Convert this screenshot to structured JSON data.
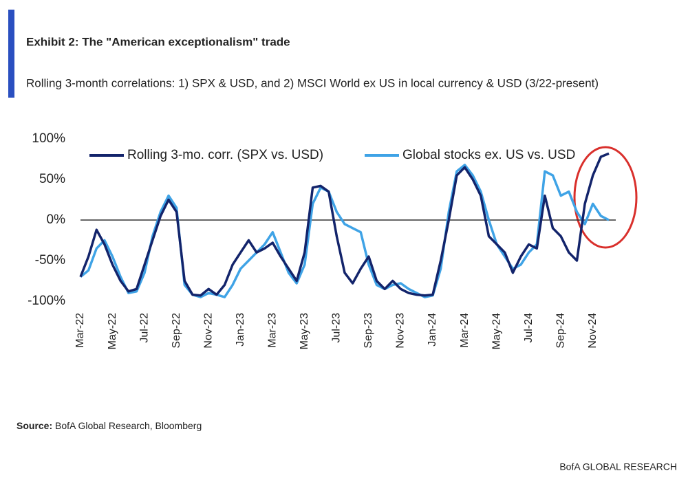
{
  "header": {
    "title": "Exhibit 2: The \"American exceptionalism\" trade",
    "subtitle": "Rolling 3-month correlations: 1) SPX & USD, and 2) MSCI World ex US in local currency & USD (3/22-present)"
  },
  "chart_data": {
    "type": "line",
    "categories": [
      "Mar-22",
      null,
      null,
      null,
      "May-22",
      null,
      null,
      null,
      "Jul-22",
      null,
      null,
      null,
      "Sep-22",
      null,
      null,
      null,
      "Nov-22",
      null,
      null,
      null,
      "Jan-23",
      null,
      null,
      null,
      "Mar-23",
      null,
      null,
      null,
      "May-23",
      null,
      null,
      null,
      "Jul-23",
      null,
      null,
      null,
      "Sep-23",
      null,
      null,
      null,
      "Nov-23",
      null,
      null,
      null,
      "Jan-24",
      null,
      null,
      null,
      "Mar-24",
      null,
      null,
      null,
      "May-24",
      null,
      null,
      null,
      "Jul-24",
      null,
      null,
      null,
      "Sep-24",
      null,
      null,
      null,
      "Nov-24",
      null,
      null
    ],
    "series": [
      {
        "name": "Rolling 3-mo. corr. (SPX vs. USD)",
        "color": "#13246b",
        "values": [
          -70,
          -45,
          -12,
          -30,
          -55,
          -75,
          -88,
          -85,
          -55,
          -25,
          5,
          25,
          10,
          -75,
          -92,
          -93,
          -85,
          -92,
          -80,
          -55,
          -40,
          -25,
          -40,
          -35,
          -28,
          -45,
          -60,
          -75,
          -40,
          40,
          42,
          35,
          -20,
          -65,
          -78,
          -60,
          -45,
          -75,
          -85,
          -75,
          -85,
          -90,
          -92,
          -93,
          -92,
          -50,
          0,
          55,
          65,
          50,
          30,
          -20,
          -30,
          -40,
          -65,
          -45,
          -30,
          -35,
          30,
          -10,
          -20,
          -40,
          -50,
          20,
          55,
          78,
          82
        ]
      },
      {
        "name": "Global stocks ex. US vs. USD",
        "color": "#3fa3e6",
        "values": [
          -70,
          -62,
          -35,
          -25,
          -45,
          -70,
          -90,
          -88,
          -65,
          -20,
          10,
          30,
          15,
          -80,
          -92,
          -95,
          -90,
          -92,
          -95,
          -80,
          -60,
          -50,
          -40,
          -30,
          -15,
          -40,
          -65,
          -78,
          -55,
          20,
          40,
          35,
          10,
          -5,
          -10,
          -15,
          -55,
          -80,
          -85,
          -80,
          -78,
          -85,
          -90,
          -95,
          -93,
          -60,
          10,
          60,
          68,
          55,
          35,
          0,
          -30,
          -45,
          -60,
          -55,
          -40,
          -30,
          60,
          55,
          30,
          35,
          10,
          -5,
          20,
          5,
          0
        ]
      }
    ],
    "ylim": [
      -100,
      100
    ],
    "yticks": [
      {
        "value": 100,
        "label": "100%"
      },
      {
        "value": 50,
        "label": "50%"
      },
      {
        "value": 0,
        "label": "0%"
      },
      {
        "value": -50,
        "label": "-50%"
      },
      {
        "value": -100,
        "label": "-100%"
      }
    ]
  },
  "footer": {
    "source_label": "Source:",
    "source": "BofA Global Research, Bloomberg",
    "brand": "BofA GLOBAL RESEARCH"
  }
}
